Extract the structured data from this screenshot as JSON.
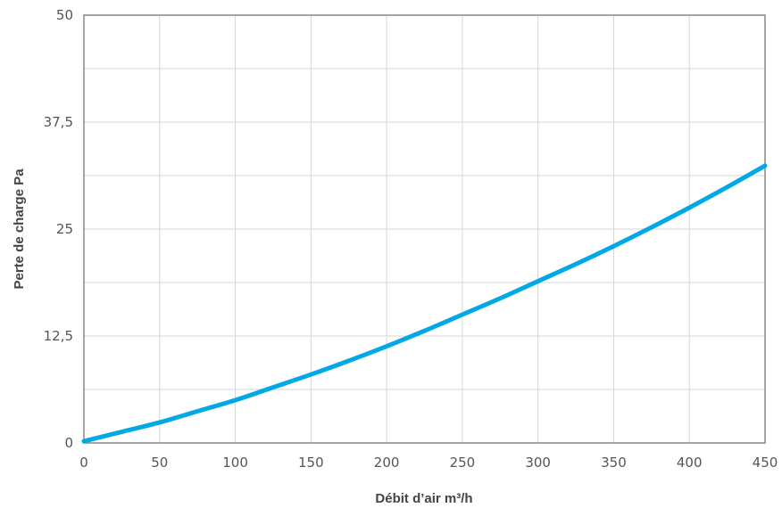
{
  "chart_data": {
    "type": "line",
    "title": "",
    "xlabel": "Débit d’air m³/h",
    "ylabel": "Perte de charge Pa",
    "xlim": [
      0,
      450
    ],
    "ylim": [
      0,
      50
    ],
    "x_ticks": [
      "0",
      "50",
      "100",
      "150",
      "200",
      "250",
      "300",
      "350",
      "400",
      "450"
    ],
    "y_ticks": [
      "0",
      "12,5",
      "25",
      "37,5",
      "50"
    ],
    "grid": true,
    "colors": {
      "series": "#00a8e6",
      "grid": "#d5d5d5",
      "frame": "#888888"
    },
    "series": [
      {
        "x": [
          0,
          25,
          50,
          75,
          100,
          125,
          150,
          175,
          200,
          225,
          250,
          275,
          300,
          325,
          350,
          375,
          400,
          425,
          450
        ],
        "values": [
          0.2,
          1.3,
          2.4,
          3.7,
          5.0,
          6.5,
          8.0,
          9.6,
          11.3,
          13.1,
          15.0,
          16.9,
          18.9,
          20.9,
          23.0,
          25.2,
          27.5,
          29.9,
          32.4
        ]
      }
    ]
  }
}
